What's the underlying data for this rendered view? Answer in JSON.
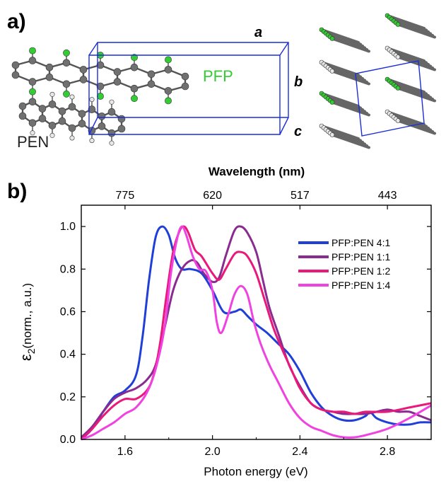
{
  "panel_a": {
    "label": "a)",
    "pfp_label": "PFP",
    "pen_label": "PEN",
    "axis_a": "a",
    "axis_b": "b",
    "axis_c": "c",
    "colors": {
      "pfp": "#33cc33",
      "cell": "#1a2fd6",
      "carbon": "#707070",
      "fluorine": "#33cc33",
      "hydrogen": "#e8e8e8"
    }
  },
  "panel_b": {
    "label": "b)"
  },
  "chart_data": {
    "type": "line",
    "xlabel": "Photon energy (eV)",
    "ylabel": "ε2(norm., a.u.)",
    "ylabel_main": "ε",
    "ylabel_sub": "2",
    "ylabel_rest": "(norm., a.u.)",
    "top_axis_title": "Wavelength (nm)",
    "xlim": [
      1.4,
      3.0
    ],
    "ylim": [
      0.0,
      1.1
    ],
    "x_ticks": [
      1.6,
      2.0,
      2.4,
      2.8
    ],
    "x_tick_labels": [
      "1.6",
      "2.0",
      "2.4",
      "2.8"
    ],
    "y_ticks": [
      0.0,
      0.2,
      0.4,
      0.6,
      0.8,
      1.0
    ],
    "y_tick_labels": [
      "0.0",
      "0.2",
      "0.4",
      "0.6",
      "0.8",
      "1.0"
    ],
    "top_ticks": [
      {
        "label": "775",
        "energy": 1.6
      },
      {
        "label": "620",
        "energy": 2.0
      },
      {
        "label": "517",
        "energy": 2.4
      },
      {
        "label": "443",
        "energy": 2.8
      }
    ],
    "legend_position": "top-right",
    "series": [
      {
        "name": "PFP:PEN 4:1",
        "color": "#1f3fd8",
        "x": [
          1.4,
          1.45,
          1.5,
          1.55,
          1.6,
          1.65,
          1.68,
          1.71,
          1.74,
          1.77,
          1.8,
          1.83,
          1.86,
          1.9,
          1.95,
          2.0,
          2.05,
          2.1,
          2.13,
          2.16,
          2.2,
          2.25,
          2.3,
          2.35,
          2.4,
          2.45,
          2.5,
          2.55,
          2.6,
          2.65,
          2.7,
          2.72,
          2.75,
          2.8,
          2.85,
          2.9,
          2.95,
          3.0
        ],
        "y": [
          0.0,
          0.05,
          0.13,
          0.2,
          0.23,
          0.3,
          0.48,
          0.75,
          0.95,
          1.0,
          0.96,
          0.85,
          0.8,
          0.8,
          0.78,
          0.7,
          0.6,
          0.6,
          0.61,
          0.58,
          0.54,
          0.5,
          0.45,
          0.4,
          0.32,
          0.22,
          0.15,
          0.11,
          0.09,
          0.09,
          0.11,
          0.13,
          0.1,
          0.08,
          0.07,
          0.07,
          0.08,
          0.08
        ]
      },
      {
        "name": "PFP:PEN 1:1",
        "color": "#8a2b8f",
        "x": [
          1.4,
          1.45,
          1.5,
          1.55,
          1.6,
          1.65,
          1.7,
          1.74,
          1.78,
          1.82,
          1.86,
          1.9,
          1.93,
          1.96,
          2.0,
          2.03,
          2.06,
          2.1,
          2.13,
          2.16,
          2.2,
          2.23,
          2.26,
          2.3,
          2.35,
          2.4,
          2.45,
          2.5,
          2.55,
          2.6,
          2.65,
          2.7,
          2.75,
          2.8,
          2.85,
          2.9,
          2.95,
          3.0
        ],
        "y": [
          0.01,
          0.06,
          0.13,
          0.19,
          0.22,
          0.24,
          0.28,
          0.35,
          0.52,
          0.7,
          0.8,
          0.84,
          0.83,
          0.78,
          0.74,
          0.76,
          0.86,
          0.98,
          1.0,
          0.97,
          0.88,
          0.75,
          0.62,
          0.5,
          0.35,
          0.25,
          0.17,
          0.14,
          0.13,
          0.12,
          0.12,
          0.12,
          0.13,
          0.14,
          0.13,
          0.13,
          0.11,
          0.09
        ]
      },
      {
        "name": "PFP:PEN 1:2",
        "color": "#e8197a",
        "x": [
          1.4,
          1.45,
          1.5,
          1.55,
          1.6,
          1.65,
          1.7,
          1.73,
          1.76,
          1.79,
          1.82,
          1.85,
          1.87,
          1.89,
          1.92,
          1.95,
          2.0,
          2.03,
          2.06,
          2.1,
          2.13,
          2.16,
          2.2,
          2.24,
          2.28,
          2.32,
          2.36,
          2.4,
          2.45,
          2.5,
          2.55,
          2.6,
          2.65,
          2.7,
          2.8,
          2.9,
          2.95,
          3.0
        ],
        "y": [
          0.0,
          0.05,
          0.11,
          0.16,
          0.19,
          0.19,
          0.23,
          0.3,
          0.45,
          0.68,
          0.88,
          0.98,
          1.0,
          0.97,
          0.89,
          0.86,
          0.78,
          0.75,
          0.8,
          0.87,
          0.88,
          0.86,
          0.78,
          0.65,
          0.52,
          0.42,
          0.33,
          0.24,
          0.17,
          0.14,
          0.13,
          0.13,
          0.12,
          0.13,
          0.13,
          0.15,
          0.16,
          0.17
        ]
      },
      {
        "name": "PFP:PEN 1:4",
        "color": "#f042e0",
        "x": [
          1.4,
          1.45,
          1.5,
          1.55,
          1.6,
          1.65,
          1.7,
          1.74,
          1.78,
          1.81,
          1.84,
          1.86,
          1.88,
          1.91,
          1.94,
          1.97,
          2.0,
          2.02,
          2.04,
          2.07,
          2.1,
          2.13,
          2.16,
          2.19,
          2.22,
          2.26,
          2.3,
          2.35,
          2.4,
          2.45,
          2.5,
          2.55,
          2.6,
          2.65,
          2.7,
          2.8,
          2.9,
          3.0
        ],
        "y": [
          0.0,
          0.02,
          0.05,
          0.08,
          0.12,
          0.15,
          0.22,
          0.33,
          0.52,
          0.78,
          0.95,
          1.0,
          0.96,
          0.86,
          0.8,
          0.79,
          0.7,
          0.55,
          0.5,
          0.58,
          0.68,
          0.72,
          0.68,
          0.55,
          0.45,
          0.35,
          0.27,
          0.17,
          0.1,
          0.06,
          0.04,
          0.02,
          0.01,
          0.01,
          0.02,
          0.05,
          0.1,
          0.16
        ]
      }
    ]
  }
}
